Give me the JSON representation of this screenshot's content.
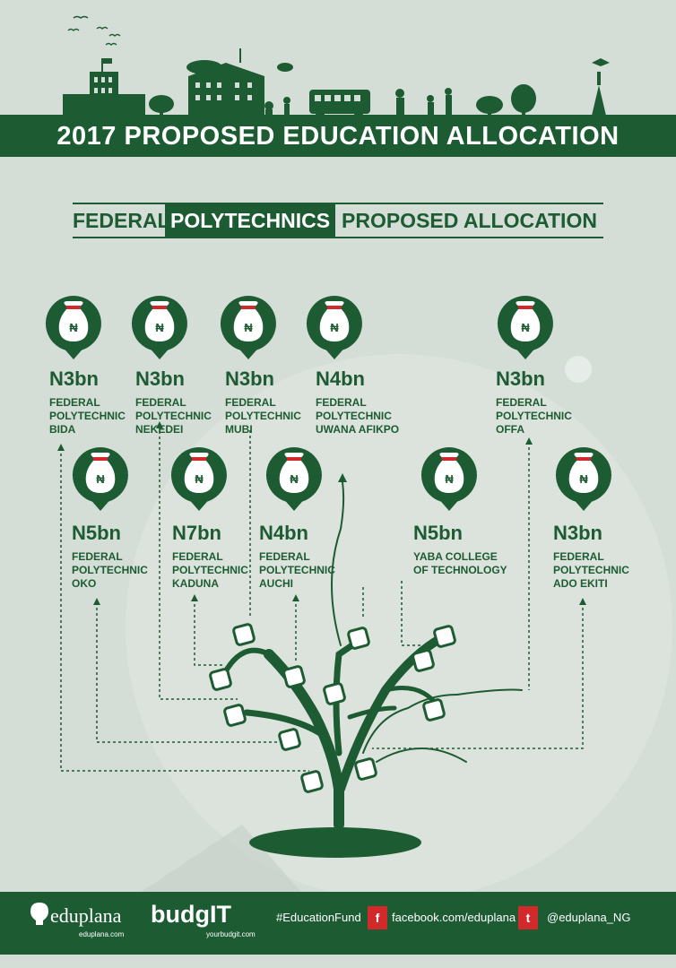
{
  "header": {
    "title": "2017 PROPOSED EDUCATION  ALLOCATION"
  },
  "subtitle": {
    "part1": "FEDERAL",
    "part2": "POLYTECHNICS",
    "part3": "PROPOSED ALLOCATION"
  },
  "bag_symbol": "₦",
  "allocations": [
    {
      "amount": "N3bn",
      "name": [
        "FEDERAL",
        "POLYTECHNIC",
        "BIDA"
      ]
    },
    {
      "amount": "N3bn",
      "name": [
        "FEDERAL",
        "POLYTECHNIC",
        "NEKEDEI"
      ]
    },
    {
      "amount": "N3bn",
      "name": [
        "FEDERAL",
        "POLYTECHNIC",
        "MUBI"
      ]
    },
    {
      "amount": "N4bn",
      "name": [
        "FEDERAL",
        "POLYTECHNIC",
        "UWANA AFIKPO"
      ]
    },
    {
      "amount": "N3bn",
      "name": [
        "FEDERAL",
        "POLYTECHNIC",
        "OFFA"
      ]
    },
    {
      "amount": "N5bn",
      "name": [
        "FEDERAL",
        "POLYTECHNIC",
        "OKO"
      ]
    },
    {
      "amount": "N7bn",
      "name": [
        "FEDERAL",
        "POLYTECHNIC",
        "KADUNA"
      ]
    },
    {
      "amount": "N4bn",
      "name": [
        "FEDERAL",
        "POLYTECHNIC",
        "AUCHI"
      ]
    },
    {
      "amount": "N5bn",
      "name": [
        "YABA COLLEGE",
        "OF TECHNOLOGY"
      ]
    },
    {
      "amount": "N3bn",
      "name": [
        "FEDERAL",
        "POLYTECHNIC",
        "ADO EKITI"
      ]
    }
  ],
  "footer": {
    "eduplana_logo": "eduplana",
    "eduplana_url": "eduplana.com",
    "budgit_logo": "budgIT",
    "budgit_url": "yourbudgit.com",
    "hashtag": "#EducationFund",
    "facebook": "facebook.com/eduplana",
    "twitter": "@eduplana_NG"
  },
  "colors": {
    "primary": "#1d5c33",
    "background": "#d4ddd6",
    "accent": "#d22a2a"
  }
}
